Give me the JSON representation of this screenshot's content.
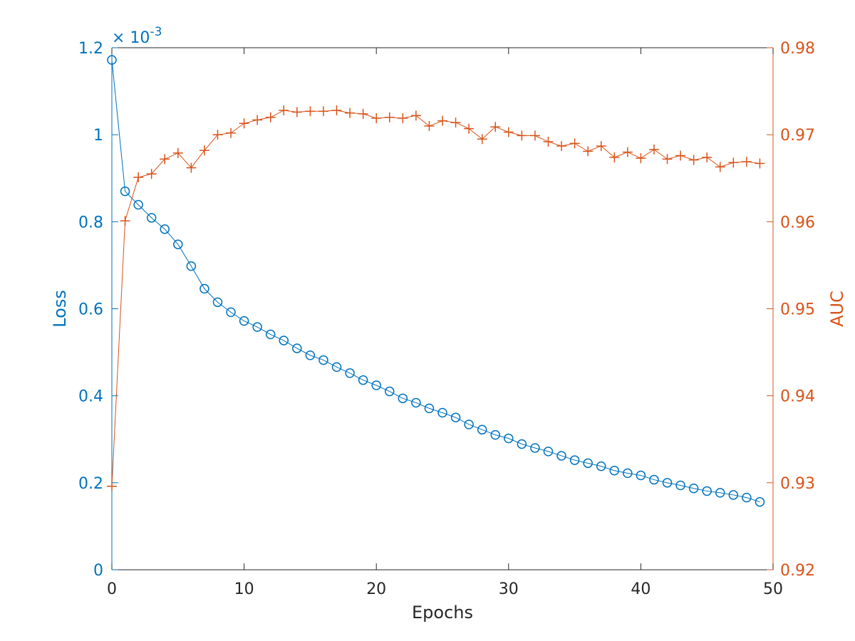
{
  "chart_data": {
    "type": "line",
    "xlabel": "Epochs",
    "ylabel_left": "Loss",
    "ylabel_right": "AUC",
    "left_axis_exponent": "-3",
    "xlim": [
      0,
      50
    ],
    "ylim_left": [
      0,
      1.2
    ],
    "ylim_right": [
      0.92,
      0.98
    ],
    "x_ticks": [
      "0",
      "10",
      "20",
      "30",
      "40",
      "50"
    ],
    "y_left_ticks": [
      "0",
      "0.2",
      "0.4",
      "0.6",
      "0.8",
      "1",
      "1.2"
    ],
    "y_right_ticks": [
      "0.92",
      "0.93",
      "0.94",
      "0.95",
      "0.96",
      "0.97",
      "0.98"
    ],
    "colors": {
      "loss": "#0072BD",
      "auc": "#D95319",
      "axis": "#262626"
    },
    "grid": false,
    "x": [
      0,
      1,
      2,
      3,
      4,
      5,
      6,
      7,
      8,
      9,
      10,
      11,
      12,
      13,
      14,
      15,
      16,
      17,
      18,
      19,
      20,
      21,
      22,
      23,
      24,
      25,
      26,
      27,
      28,
      29,
      30,
      31,
      32,
      33,
      34,
      35,
      36,
      37,
      38,
      39,
      40,
      41,
      42,
      43,
      44,
      45,
      46,
      47,
      48,
      49
    ],
    "series": [
      {
        "axis": "left",
        "marker": "circle",
        "values": [
          1.172,
          0.87,
          0.839,
          0.809,
          0.783,
          0.748,
          0.698,
          0.646,
          0.615,
          0.592,
          0.572,
          0.558,
          0.541,
          0.527,
          0.509,
          0.493,
          0.482,
          0.466,
          0.452,
          0.436,
          0.424,
          0.41,
          0.394,
          0.384,
          0.371,
          0.361,
          0.35,
          0.334,
          0.322,
          0.31,
          0.302,
          0.289,
          0.28,
          0.272,
          0.262,
          0.252,
          0.245,
          0.238,
          0.228,
          0.222,
          0.217,
          0.207,
          0.2,
          0.194,
          0.187,
          0.181,
          0.177,
          0.172,
          0.166,
          0.156
        ]
      },
      {
        "axis": "right",
        "marker": "plus",
        "values": [
          0.9296,
          0.9601,
          0.9651,
          0.9655,
          0.9672,
          0.9679,
          0.9662,
          0.9682,
          0.97,
          0.9702,
          0.9713,
          0.9717,
          0.972,
          0.9728,
          0.9726,
          0.9727,
          0.9727,
          0.9728,
          0.9725,
          0.9724,
          0.9719,
          0.972,
          0.9719,
          0.9722,
          0.971,
          0.9716,
          0.9714,
          0.9707,
          0.9695,
          0.9709,
          0.9703,
          0.9699,
          0.9699,
          0.9692,
          0.9687,
          0.969,
          0.9681,
          0.9687,
          0.9674,
          0.968,
          0.9673,
          0.9683,
          0.9672,
          0.9676,
          0.9671,
          0.9674,
          0.9663,
          0.9668,
          0.9669,
          0.9667
        ]
      }
    ]
  }
}
